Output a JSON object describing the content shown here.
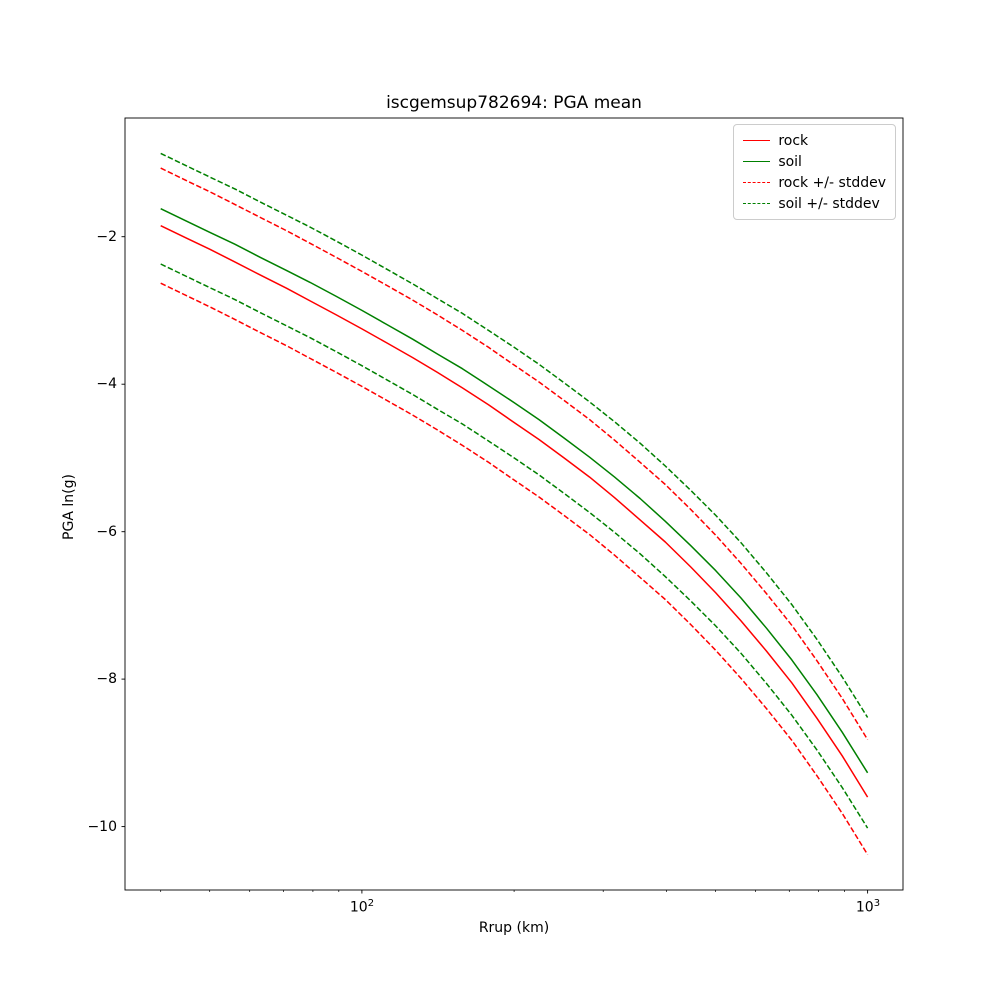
{
  "chart_data": {
    "type": "line",
    "title": "iscgemsup782694: PGA mean",
    "xlabel": "Rrup (km)",
    "ylabel": "PGA ln(g)",
    "x_scale": "log",
    "grid": false,
    "xlim": [
      34,
      1175
    ],
    "ylim": [
      -10.86,
      -0.39
    ],
    "x": [
      40,
      45,
      50,
      56,
      63,
      71,
      79,
      89,
      100,
      112,
      126,
      141,
      158,
      178,
      200,
      224,
      251,
      282,
      316,
      355,
      398,
      447,
      501,
      562,
      631,
      708,
      794,
      891,
      1000
    ],
    "series": [
      {
        "name": "rock",
        "color": "#ff0000",
        "style": "solid",
        "values": [
          -1.85,
          -2.02,
          -2.17,
          -2.34,
          -2.52,
          -2.7,
          -2.87,
          -3.06,
          -3.25,
          -3.44,
          -3.64,
          -3.84,
          -4.05,
          -4.28,
          -4.52,
          -4.75,
          -5.0,
          -5.26,
          -5.54,
          -5.84,
          -6.14,
          -6.48,
          -6.83,
          -7.21,
          -7.62,
          -8.05,
          -8.53,
          -9.04,
          -9.6
        ]
      },
      {
        "name": "soil",
        "color": "#008000",
        "style": "solid",
        "values": [
          -1.62,
          -1.79,
          -1.94,
          -2.1,
          -2.28,
          -2.46,
          -2.62,
          -2.81,
          -3.0,
          -3.19,
          -3.39,
          -3.59,
          -3.79,
          -4.02,
          -4.25,
          -4.48,
          -4.73,
          -4.99,
          -5.26,
          -5.55,
          -5.86,
          -6.19,
          -6.53,
          -6.9,
          -7.31,
          -7.74,
          -8.21,
          -8.72,
          -9.27
        ]
      },
      {
        "name": "rock plus stddev",
        "color": "#ff0000",
        "style": "dashed",
        "values": [
          -1.07,
          -1.24,
          -1.39,
          -1.56,
          -1.74,
          -1.92,
          -2.09,
          -2.28,
          -2.47,
          -2.66,
          -2.86,
          -3.06,
          -3.27,
          -3.5,
          -3.74,
          -3.97,
          -4.22,
          -4.48,
          -4.76,
          -5.06,
          -5.36,
          -5.7,
          -6.05,
          -6.43,
          -6.84,
          -7.27,
          -7.75,
          -8.26,
          -8.82
        ]
      },
      {
        "name": "rock minus stddev",
        "color": "#ff0000",
        "style": "dashed",
        "values": [
          -2.63,
          -2.8,
          -2.95,
          -3.12,
          -3.3,
          -3.48,
          -3.65,
          -3.84,
          -4.03,
          -4.22,
          -4.42,
          -4.62,
          -4.83,
          -5.06,
          -5.3,
          -5.53,
          -5.78,
          -6.04,
          -6.32,
          -6.62,
          -6.92,
          -7.26,
          -7.61,
          -7.99,
          -8.4,
          -8.83,
          -9.31,
          -9.82,
          -10.38
        ]
      },
      {
        "name": "soil plus stddev",
        "color": "#008000",
        "style": "dashed",
        "values": [
          -0.87,
          -1.04,
          -1.19,
          -1.35,
          -1.53,
          -1.71,
          -1.87,
          -2.06,
          -2.25,
          -2.44,
          -2.64,
          -2.84,
          -3.04,
          -3.27,
          -3.5,
          -3.73,
          -3.98,
          -4.24,
          -4.51,
          -4.8,
          -5.11,
          -5.44,
          -5.78,
          -6.15,
          -6.56,
          -6.99,
          -7.46,
          -7.97,
          -8.52
        ]
      },
      {
        "name": "soil minus stddev",
        "color": "#008000",
        "style": "dashed",
        "values": [
          -2.37,
          -2.54,
          -2.69,
          -2.85,
          -3.03,
          -3.21,
          -3.37,
          -3.56,
          -3.75,
          -3.94,
          -4.14,
          -4.34,
          -4.54,
          -4.77,
          -5.0,
          -5.23,
          -5.48,
          -5.74,
          -6.01,
          -6.3,
          -6.61,
          -6.94,
          -7.28,
          -7.65,
          -8.06,
          -8.49,
          -8.96,
          -9.47,
          -10.02
        ]
      }
    ],
    "stddev": {
      "rock": 0.78,
      "soil": 0.75
    },
    "legend": {
      "position": "upper right",
      "entries": [
        {
          "label": "rock",
          "color": "#ff0000",
          "style": "solid"
        },
        {
          "label": "soil",
          "color": "#008000",
          "style": "solid"
        },
        {
          "label": "rock +/- stddev",
          "color": "#ff0000",
          "style": "dashed"
        },
        {
          "label": "soil +/- stddev",
          "color": "#008000",
          "style": "dashed"
        }
      ]
    },
    "xticks": [
      {
        "value": 100,
        "base": "10",
        "exp": "2"
      },
      {
        "value": 1000,
        "base": "10",
        "exp": "3"
      }
    ],
    "x_minor_ticks": [
      40,
      50,
      60,
      70,
      80,
      90,
      200,
      300,
      400,
      500,
      600,
      700,
      800,
      900
    ],
    "yticks": [
      -2,
      -4,
      -6,
      -8,
      -10
    ],
    "yticklabels": [
      "−2",
      "−4",
      "−6",
      "−8",
      "−10"
    ]
  }
}
